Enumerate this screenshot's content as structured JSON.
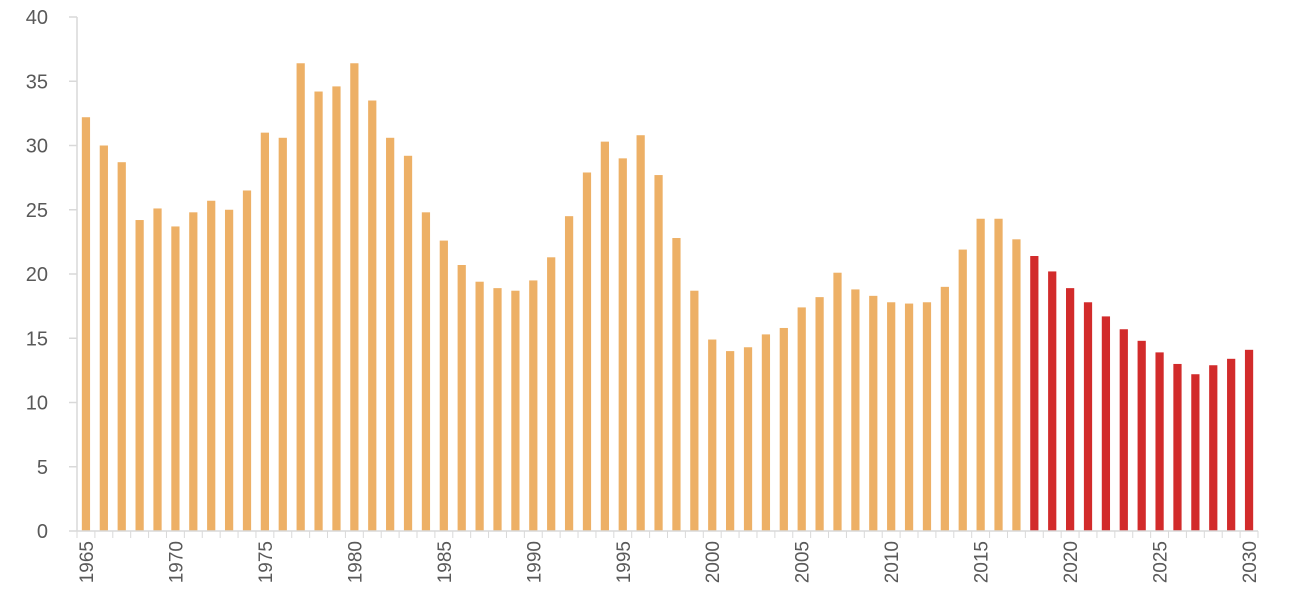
{
  "chart_data": {
    "type": "bar",
    "title": "",
    "xlabel": "",
    "ylabel": "",
    "ylim": [
      0,
      40
    ],
    "yticks": [
      "0",
      "5",
      "10",
      "15",
      "20",
      "25",
      "30",
      "35",
      "40"
    ],
    "xtick_labels": [
      "1965",
      "1970",
      "1975",
      "1980",
      "1985",
      "1990",
      "1995",
      "2000",
      "2005",
      "2010",
      "2015",
      "2020",
      "2025",
      "2030"
    ],
    "grid": false,
    "legend": "none",
    "colors": {
      "historical": "#EDB066",
      "projected": "#D22B2B",
      "axis": "#D9D9D9"
    },
    "projection_start_year": 2018,
    "categories": [
      1965,
      1966,
      1967,
      1968,
      1969,
      1970,
      1971,
      1972,
      1973,
      1974,
      1975,
      1976,
      1977,
      1978,
      1979,
      1980,
      1981,
      1982,
      1983,
      1984,
      1985,
      1986,
      1987,
      1988,
      1989,
      1990,
      1991,
      1992,
      1993,
      1994,
      1995,
      1996,
      1997,
      1998,
      1999,
      2000,
      2001,
      2002,
      2003,
      2004,
      2005,
      2006,
      2007,
      2008,
      2009,
      2010,
      2011,
      2012,
      2013,
      2014,
      2015,
      2016,
      2017,
      2018,
      2019,
      2020,
      2021,
      2022,
      2023,
      2024,
      2025,
      2026,
      2027,
      2028,
      2029,
      2030
    ],
    "values": [
      32.2,
      30.0,
      28.7,
      24.2,
      25.1,
      23.7,
      24.8,
      25.7,
      25.0,
      26.5,
      31.0,
      30.6,
      36.4,
      34.2,
      34.6,
      36.4,
      33.5,
      30.6,
      29.2,
      24.8,
      22.6,
      20.7,
      19.4,
      18.9,
      18.7,
      19.5,
      21.3,
      24.5,
      27.9,
      30.3,
      29.0,
      30.8,
      27.7,
      22.8,
      18.7,
      14.9,
      14.0,
      14.3,
      15.3,
      15.8,
      17.4,
      18.2,
      20.1,
      18.8,
      18.3,
      17.8,
      17.7,
      17.8,
      19.0,
      21.9,
      24.3,
      24.3,
      22.7,
      21.4,
      20.2,
      18.9,
      17.8,
      16.7,
      15.7,
      14.8,
      13.9,
      13.0,
      12.2,
      12.9,
      13.4,
      14.1
    ]
  }
}
